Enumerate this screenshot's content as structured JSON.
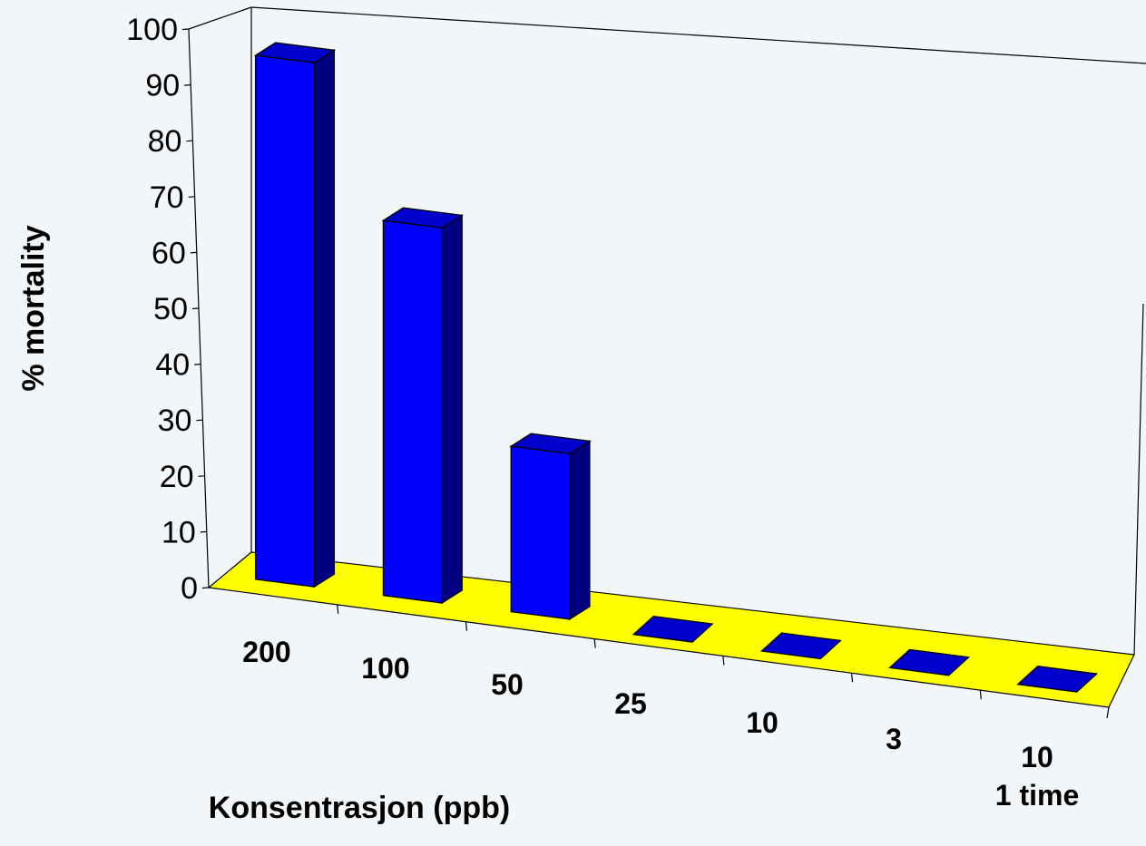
{
  "chart_data": {
    "type": "bar",
    "title": "",
    "xlabel": "Konsentrasjon (ppb)",
    "ylabel": "% mortality",
    "categories": [
      {
        "lines": [
          "200"
        ]
      },
      {
        "lines": [
          "100"
        ]
      },
      {
        "lines": [
          "50"
        ]
      },
      {
        "lines": [
          "25"
        ]
      },
      {
        "lines": [
          "10"
        ]
      },
      {
        "lines": [
          "3"
        ]
      },
      {
        "lines": [
          "10",
          "1 time"
        ]
      }
    ],
    "values": [
      95,
      68,
      30,
      0,
      0,
      0,
      0
    ],
    "ylim": [
      0,
      100
    ],
    "yticks": [
      0,
      10,
      20,
      30,
      40,
      50,
      60,
      70,
      80,
      90,
      100
    ],
    "grid": false,
    "legend": "none",
    "colors": {
      "bar_front": "#0000ff",
      "bar_side": "#000080",
      "bar_top": "#0000cc",
      "floor": "#ffff00",
      "background": "#f3f6f9",
      "axis": "#000000"
    }
  }
}
